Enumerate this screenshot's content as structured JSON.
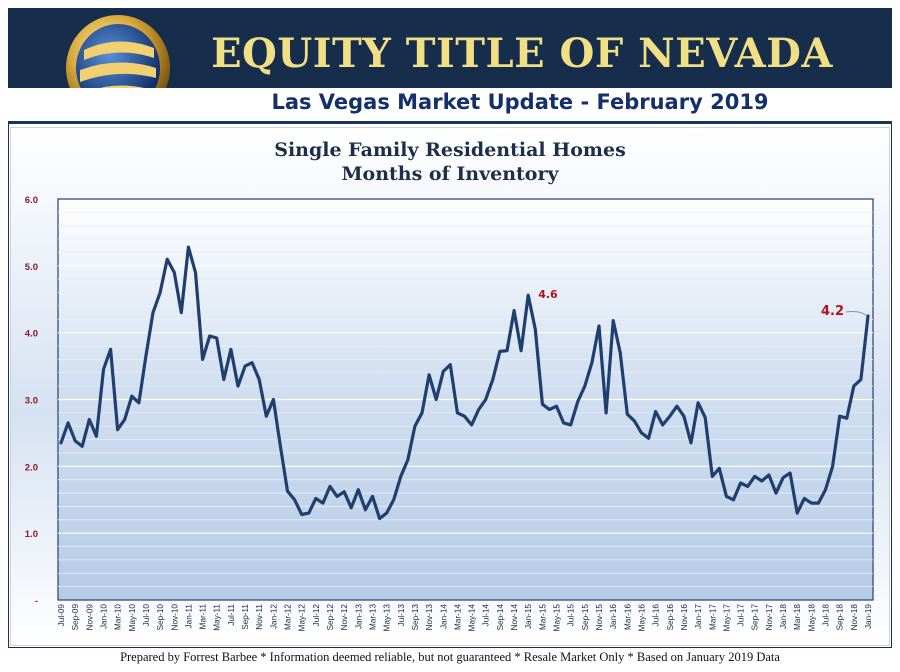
{
  "header": {
    "company": "EQUITY TITLE OF NEVADA",
    "subtitle": "Las Vegas Market Update - February 2019",
    "logo_icon": "e-globe-logo-icon"
  },
  "colors": {
    "header_bg": "#162d4c",
    "company_text": "#f1df86",
    "subtitle_text": "#14306a",
    "line": "#1f3f6e",
    "annotation": "#b0141b"
  },
  "chart_data": {
    "type": "line",
    "title": "Single Family Residential Homes",
    "subtitle": "Months of Inventory",
    "ylim": [
      0,
      6
    ],
    "yticks": [
      "-",
      "1.0",
      "2.0",
      "3.0",
      "4.0",
      "5.0",
      "6.0"
    ],
    "grid": true,
    "xtick_labels": [
      "Jul-09",
      "Sep-09",
      "Nov-09",
      "Jan-10",
      "Mar-10",
      "May-10",
      "Jul-10",
      "Sep-10",
      "Nov-10",
      "Jan-11",
      "Mar-11",
      "May-11",
      "Jul-11",
      "Sep-11",
      "Nov-11",
      "Jan-12",
      "Mar-12",
      "May-12",
      "Jul-12",
      "Sep-12",
      "Nov-12",
      "Jan-13",
      "Mar-13",
      "May-13",
      "Jul-13",
      "Sep-13",
      "Nov-13",
      "Jan-14",
      "Mar-14",
      "May-14",
      "Jul-14",
      "Sep-14",
      "Nov-14",
      "Jan-15",
      "Mar-15",
      "May-15",
      "Jul-15",
      "Sep-15",
      "Nov-15",
      "Jan-16",
      "Mar-16",
      "May-16",
      "Jul-16",
      "Sep-16",
      "Nov-16",
      "Jan-17",
      "Mar-17",
      "May-17",
      "Jul-17",
      "Sep-17",
      "Nov-17",
      "Jan-18",
      "Mar-18",
      "May-18",
      "Jul-18",
      "Sep-18",
      "Nov-18",
      "Jan-19"
    ],
    "series": [
      {
        "values": [
          2.35,
          2.65,
          2.38,
          2.3,
          2.7,
          2.45,
          3.45,
          3.75,
          2.55,
          2.7,
          3.05,
          2.95,
          3.65,
          4.3,
          4.6,
          5.1,
          4.9,
          4.3,
          5.28,
          4.9,
          3.6,
          3.95,
          3.92,
          3.3,
          3.75,
          3.2,
          3.5,
          3.55,
          3.3,
          2.75,
          3.0,
          2.3,
          1.63,
          1.5,
          1.28,
          1.3,
          1.52,
          1.45,
          1.7,
          1.55,
          1.62,
          1.38,
          1.65,
          1.35,
          1.55,
          1.22,
          1.3,
          1.5,
          1.85,
          2.1,
          2.6,
          2.8,
          3.37,
          3.0,
          3.42,
          3.52,
          2.8,
          2.75,
          2.62,
          2.85,
          3.0,
          3.3,
          3.72,
          3.73,
          4.33,
          3.73,
          4.56,
          4.05,
          2.93,
          2.85,
          2.9,
          2.65,
          2.62,
          2.97,
          3.2,
          3.55,
          4.1,
          2.8,
          4.18,
          3.7,
          2.78,
          2.68,
          2.5,
          2.42,
          2.82,
          2.62,
          2.75,
          2.9,
          2.75,
          2.35,
          2.95,
          2.73,
          1.85,
          1.97,
          1.55,
          1.5,
          1.75,
          1.7,
          1.85,
          1.78,
          1.87,
          1.6,
          1.83,
          1.9,
          1.3,
          1.52,
          1.45,
          1.45,
          1.65,
          2.0,
          2.75,
          2.72,
          3.2,
          3.3,
          4.25
        ]
      }
    ],
    "annotations": [
      {
        "label": "4.6",
        "index": 66
      },
      {
        "label": "4.2",
        "index": 114
      }
    ]
  },
  "footer": "Prepared by Forrest Barbee * Information deemed reliable, but not guaranteed * Resale Market Only * Based on January 2019 Data"
}
